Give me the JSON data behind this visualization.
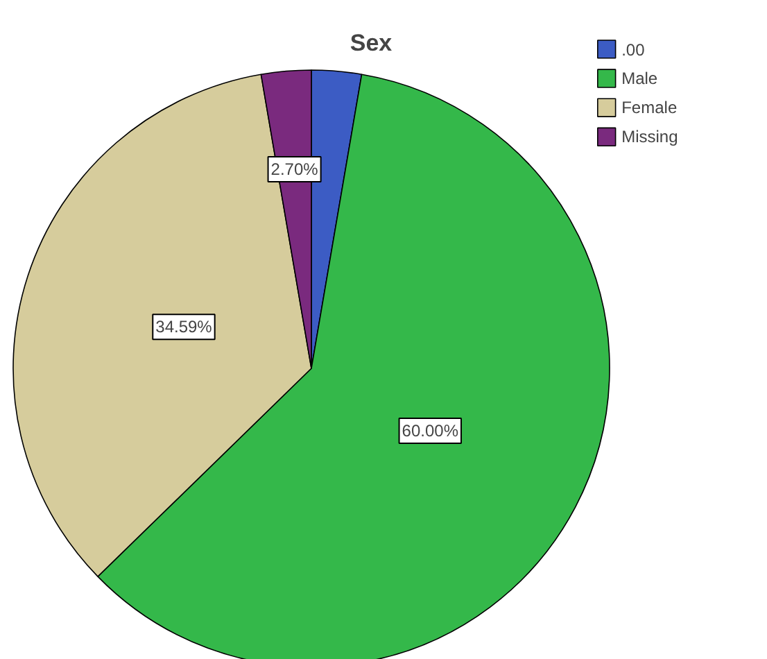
{
  "chart_data": {
    "type": "pie",
    "title": "Sex",
    "categories": [
      ".00",
      "Male",
      "Female",
      "Missing"
    ],
    "values": [
      2.7,
      60.0,
      34.59,
      2.7
    ],
    "colors": [
      "#3c5cc4",
      "#34b84a",
      "#d6cc9c",
      "#7a2a7e"
    ],
    "value_labels": [
      null,
      "60.00%",
      "34.59%",
      "2.70%"
    ],
    "legend": "top right"
  }
}
